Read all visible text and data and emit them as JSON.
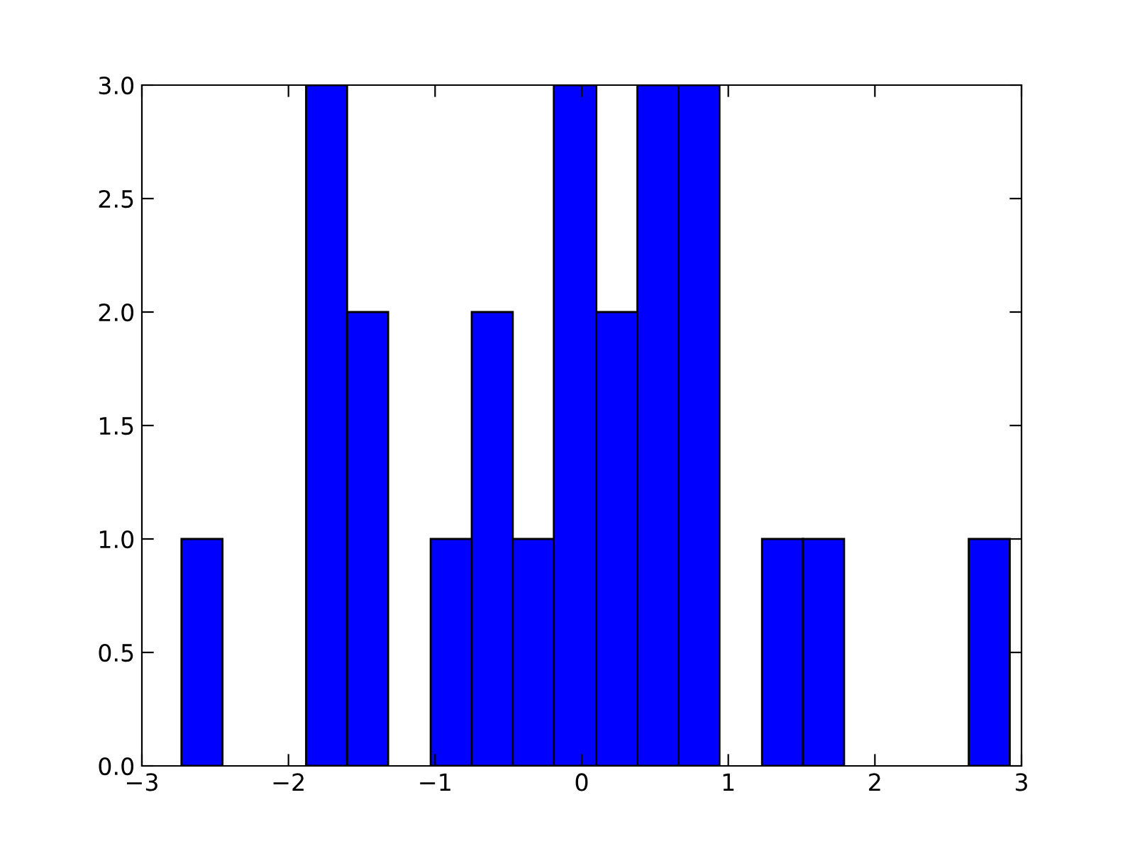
{
  "chart_data": {
    "type": "histogram",
    "bins": [
      -2.73,
      -2.45,
      -1.88,
      -1.6,
      -1.32,
      -1.03,
      -0.75,
      -0.47,
      -0.19,
      0.1,
      0.38,
      0.66,
      0.94,
      1.23,
      1.51,
      1.79,
      2.64,
      2.92
    ],
    "values": [
      1,
      0,
      3,
      2,
      0,
      1,
      2,
      1,
      3,
      2,
      3,
      3,
      0,
      1,
      1,
      0,
      1
    ],
    "color": "#0000ff",
    "xlim": [
      -3,
      3
    ],
    "xticks": [
      {
        "value": -3,
        "label": "−3"
      },
      {
        "value": -2,
        "label": "−2"
      },
      {
        "value": -1,
        "label": "−1"
      },
      0,
      1,
      2,
      3
    ],
    "ylim": [
      0,
      3
    ],
    "yticks": [
      {
        "value": 0,
        "label": "0.0"
      },
      {
        "value": 0.5,
        "label": "0.5"
      },
      {
        "value": 1,
        "label": "1.0"
      },
      {
        "value": 1.5,
        "label": "1.5"
      },
      {
        "value": 2,
        "label": "2.0"
      },
      {
        "value": 2.5,
        "label": "2.5"
      },
      {
        "value": 3,
        "label": "3.0"
      }
    ],
    "grid": false
  }
}
